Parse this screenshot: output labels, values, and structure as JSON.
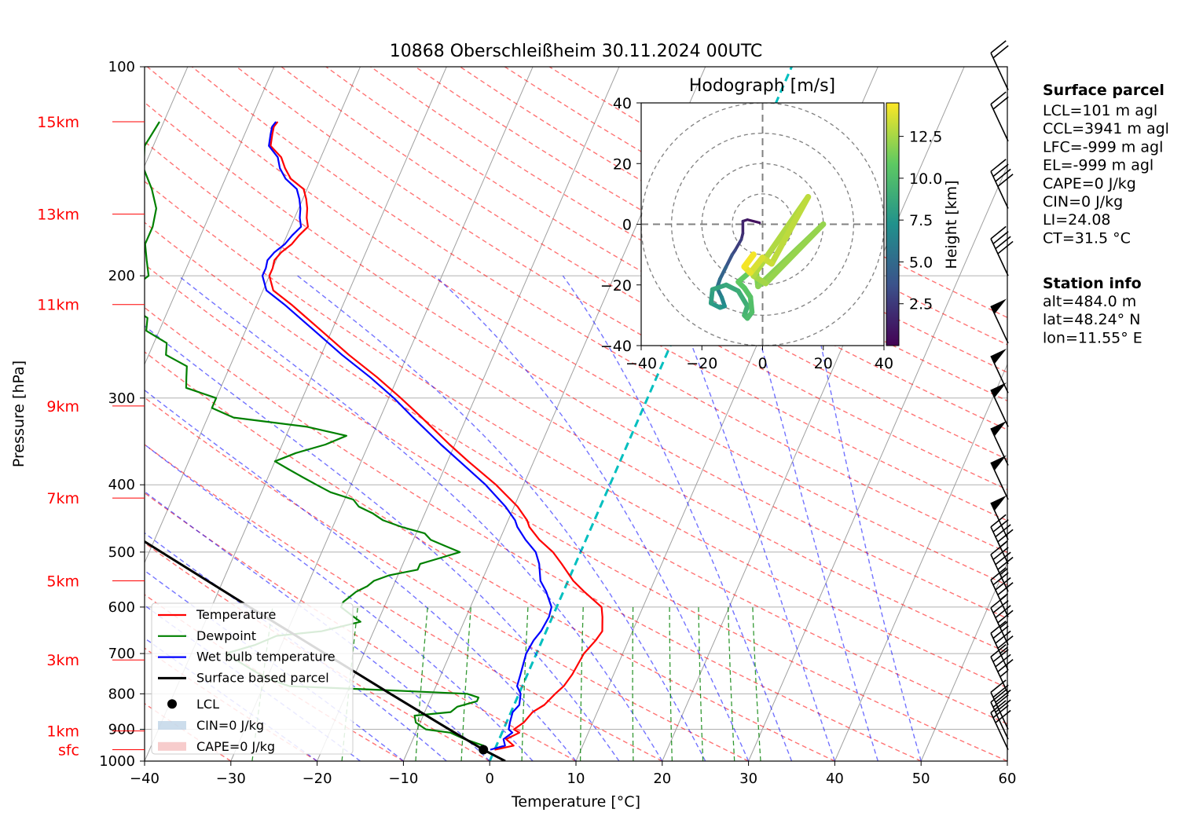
{
  "title": "10868 Oberschleißheim 30.11.2024 00UTC",
  "colors": {
    "temperature": "#ff0000",
    "dewpoint": "#008000",
    "wetbulb": "#0000ff",
    "parcel": "#000000",
    "dry_adiabat": "#ff0000",
    "moist_adiabat": "#0000ff",
    "mixing_ratio": "#008000",
    "isotherm_zero": "#00bfbf",
    "height_label": "#ff0000",
    "isotherm": "#a0a0a0"
  },
  "chart_data": [
    {
      "type": "line",
      "name": "skew-t",
      "xlabel": "Temperature [°C]",
      "ylabel": "Pressure [hPa]",
      "xlim": [
        -40,
        60
      ],
      "ylim": [
        1000,
        100
      ],
      "y_scale": "log",
      "skew": 35,
      "grid": true,
      "x_ticks": [
        -40,
        -30,
        -20,
        -10,
        0,
        10,
        20,
        30,
        40,
        50,
        60
      ],
      "x_tick_labels": [
        "−40",
        "−30",
        "−20",
        "−10",
        "0",
        "10",
        "20",
        "30",
        "40",
        "50",
        "60"
      ],
      "y_ticks": [
        1000,
        900,
        800,
        700,
        600,
        500,
        400,
        300,
        200,
        100
      ],
      "y_tick_labels": [
        "1000",
        "900",
        "800",
        "700",
        "600",
        "500",
        "400",
        "300",
        "200",
        "100"
      ],
      "height_labels": [
        {
          "label": "sfc",
          "p": 963
        },
        {
          "label": "1km",
          "p": 905
        },
        {
          "label": "3km",
          "p": 715
        },
        {
          "label": "5km",
          "p": 550
        },
        {
          "label": "7km",
          "p": 418
        },
        {
          "label": "9km",
          "p": 308
        },
        {
          "label": "11km",
          "p": 220
        },
        {
          "label": "13km",
          "p": 163
        },
        {
          "label": "15km",
          "p": 120
        }
      ],
      "legend": {
        "placement": "lower-left",
        "entries": [
          {
            "label": "Temperature",
            "kind": "line",
            "key": "temperature"
          },
          {
            "label": "Dewpoint",
            "kind": "line",
            "key": "dewpoint"
          },
          {
            "label": "Wet bulb temperature",
            "kind": "line",
            "key": "wetbulb"
          },
          {
            "label": "Surface based parcel",
            "kind": "line",
            "key": "parcel"
          },
          {
            "label": "LCL",
            "kind": "dot",
            "key": "parcel"
          },
          {
            "label": "CIN=0 J/kg",
            "kind": "patch",
            "key": "cin"
          },
          {
            "label": "CAPE=0 J/kg",
            "kind": "patch",
            "key": "cape"
          }
        ]
      },
      "lcl": {
        "p": 963,
        "t": -1.3
      },
      "series": [
        {
          "key": "temperature",
          "p": [
            963,
            950,
            930,
            910,
            900,
            880,
            850,
            830,
            800,
            780,
            750,
            700,
            670,
            650,
            620,
            600,
            570,
            550,
            520,
            500,
            480,
            460,
            450,
            430,
            400,
            370,
            350,
            320,
            300,
            280,
            260,
            240,
            220,
            210,
            200,
            195,
            190,
            185,
            180,
            175,
            170,
            165,
            160,
            155,
            150,
            145,
            140,
            135,
            130,
            125,
            122,
            120
          ],
          "t": [
            0.0,
            2.0,
            0.8,
            2.0,
            1.2,
            2.0,
            2.5,
            3.5,
            4.2,
            4.8,
            5.2,
            5.5,
            6.2,
            6.5,
            5.8,
            5.2,
            2.4,
            0.6,
            -1.6,
            -3.2,
            -5.4,
            -7.2,
            -7.8,
            -9.6,
            -13.2,
            -17.6,
            -20.6,
            -25.2,
            -28.6,
            -32.4,
            -36.8,
            -41.2,
            -46.0,
            -48.8,
            -50.0,
            -50.0,
            -50.2,
            -49.8,
            -49.0,
            -48.6,
            -48.0,
            -48.6,
            -49.0,
            -49.6,
            -50.4,
            -52.4,
            -53.6,
            -54.6,
            -56.4,
            -56.8,
            -57.0,
            -56.8
          ]
        },
        {
          "key": "wetbulb",
          "p": [
            963,
            950,
            930,
            910,
            900,
            880,
            850,
            830,
            800,
            780,
            750,
            700,
            670,
            650,
            620,
            600,
            570,
            550,
            520,
            500,
            480,
            460,
            450,
            430,
            400,
            370,
            350,
            320,
            300,
            280,
            260,
            240,
            220,
            210,
            200,
            195,
            190,
            185,
            180,
            175,
            170,
            165,
            160,
            155,
            150,
            145,
            140,
            135,
            130,
            125,
            122,
            120
          ],
          "t": [
            -0.5,
            1.0,
            0.5,
            1.2,
            0.6,
            0.4,
            0.2,
            0.6,
            0.2,
            -0.6,
            -0.8,
            -1.2,
            -1.0,
            -0.6,
            -0.4,
            -0.6,
            -2.0,
            -3.2,
            -4.2,
            -5.2,
            -7.0,
            -8.6,
            -9.2,
            -11.0,
            -14.4,
            -18.6,
            -21.6,
            -26.2,
            -29.4,
            -33.2,
            -37.6,
            -42.0,
            -46.8,
            -49.6,
            -50.8,
            -50.8,
            -51.0,
            -50.6,
            -49.8,
            -49.4,
            -48.8,
            -49.4,
            -49.8,
            -50.4,
            -51.2,
            -53.0,
            -54.2,
            -55.0,
            -56.6,
            -57.0,
            -57.2,
            -57.0
          ]
        },
        {
          "key": "dewpoint",
          "p": [
            963,
            950,
            930,
            910,
            900,
            880,
            860,
            850,
            835,
            820,
            810,
            800,
            790,
            780,
            760,
            740,
            720,
            700,
            680,
            660,
            650,
            640,
            630,
            620,
            610,
            600,
            590,
            580,
            570,
            560,
            550,
            540,
            530,
            520,
            510,
            500,
            490,
            480,
            470,
            460,
            450,
            440,
            430,
            420,
            410,
            400,
            390,
            380,
            370,
            360,
            350,
            340,
            330,
            320,
            310,
            300,
            290,
            280,
            270,
            260,
            250,
            240,
            230,
            220,
            210,
            200,
            190,
            180,
            170,
            160,
            150,
            140,
            130,
            120
          ],
          "t": [
            -1.0,
            -1.5,
            -4.0,
            -6.0,
            -9.0,
            -10.5,
            -11.0,
            -7.0,
            -6.5,
            -4.5,
            -4.5,
            -6.0,
            -16.0,
            -27.0,
            -30.0,
            -32.0,
            -34.0,
            -36.0,
            -33.0,
            -31.0,
            -26.0,
            -24.0,
            -22.0,
            -23.0,
            -24.0,
            -25.0,
            -25.0,
            -24.5,
            -24.0,
            -23.0,
            -22.5,
            -21.0,
            -18.0,
            -18.0,
            -16.0,
            -14.0,
            -16.0,
            -18.0,
            -19.0,
            -22.0,
            -24.5,
            -26.0,
            -28.0,
            -29.0,
            -32.0,
            -34.0,
            -36.0,
            -38.0,
            -40.0,
            -38.0,
            -35.0,
            -33.0,
            -38.0,
            -47.0,
            -50.0,
            -50.0,
            -54.0,
            -54.5,
            -55.0,
            -58.0,
            -58.5,
            -61.5,
            -62.0,
            -65.0,
            -65.5,
            -64.0,
            -65.0,
            -66.0,
            -66.0,
            -66.5,
            -68.0,
            -70.0,
            -71.0,
            -70.5
          ]
        },
        {
          "key": "parcel",
          "p": [
            1000,
            963,
            900,
            800,
            700,
            600,
            500,
            400,
            300,
            250
          ],
          "t": [
            1.8,
            -1.3,
            -6.3,
            -14.9,
            -24.5,
            -35.6,
            -48.6,
            -64.4,
            -84.8,
            -98.1
          ]
        }
      ],
      "wind_barbs": [
        {
          "p": 963,
          "kt": 30
        },
        {
          "p": 930,
          "kt": 30
        },
        {
          "p": 900,
          "kt": 30
        },
        {
          "p": 800,
          "kt": 45
        },
        {
          "p": 740,
          "kt": 45
        },
        {
          "p": 680,
          "kt": 45
        },
        {
          "p": 620,
          "kt": 45
        },
        {
          "p": 570,
          "kt": 45
        },
        {
          "p": 520,
          "kt": 45
        },
        {
          "p": 480,
          "kt": 50
        },
        {
          "p": 420,
          "kt": 50
        },
        {
          "p": 375,
          "kt": 50
        },
        {
          "p": 330,
          "kt": 50
        },
        {
          "p": 295,
          "kt": 50
        },
        {
          "p": 250,
          "kt": 50
        },
        {
          "p": 200,
          "kt": 40
        },
        {
          "p": 160,
          "kt": 40
        },
        {
          "p": 128,
          "kt": 20
        },
        {
          "p": 108,
          "kt": 20
        }
      ]
    },
    {
      "type": "line",
      "name": "hodograph",
      "title": "Hodograph [m/s]",
      "xlim": [
        -40,
        40
      ],
      "ylim": [
        -40,
        40
      ],
      "x_ticks": [
        -40,
        -20,
        0,
        20,
        40
      ],
      "x_tick_labels": [
        "−40",
        "−20",
        "0",
        "20",
        "40"
      ],
      "y_ticks": [
        -40,
        -20,
        0,
        20,
        40
      ],
      "y_tick_labels": [
        "−40",
        "−20",
        "0",
        "20",
        "40"
      ],
      "rings": [
        10,
        20,
        30,
        40
      ],
      "colorbar": {
        "label": "Height [km]",
        "range": [
          0,
          14.5
        ],
        "ticks": [
          2.5,
          5.0,
          7.5,
          10.0,
          12.5
        ],
        "tick_labels": [
          "2.5",
          "5.0",
          "7.5",
          "10.0",
          "12.5"
        ],
        "colormap": "viridis"
      },
      "points": [
        {
          "u": -1.0,
          "v": 0.5,
          "h": 0.4
        },
        {
          "u": -5.0,
          "v": 1.5,
          "h": 0.9
        },
        {
          "u": -6.5,
          "v": 1.0,
          "h": 1.3
        },
        {
          "u": -6.5,
          "v": -3.0,
          "h": 1.8
        },
        {
          "u": -7.0,
          "v": -5.0,
          "h": 2.3
        },
        {
          "u": -9.0,
          "v": -8.5,
          "h": 3.0
        },
        {
          "u": -10.0,
          "v": -10.0,
          "h": 3.4
        },
        {
          "u": -12.0,
          "v": -14.0,
          "h": 4.2
        },
        {
          "u": -14.0,
          "v": -18.0,
          "h": 5.0
        },
        {
          "u": -15.0,
          "v": -21.0,
          "h": 5.6
        },
        {
          "u": -13.5,
          "v": -24.0,
          "h": 6.3
        },
        {
          "u": -12.5,
          "v": -27.0,
          "h": 7.0
        },
        {
          "u": -14.0,
          "v": -27.5,
          "h": 7.5
        },
        {
          "u": -17.0,
          "v": -26.0,
          "h": 7.9
        },
        {
          "u": -16.5,
          "v": -21.5,
          "h": 8.3
        },
        {
          "u": -12.0,
          "v": -20.0,
          "h": 8.6
        },
        {
          "u": -8.0,
          "v": -22.0,
          "h": 8.9
        },
        {
          "u": -5.0,
          "v": -27.0,
          "h": 9.2
        },
        {
          "u": -6.0,
          "v": -30.0,
          "h": 9.5
        },
        {
          "u": -5.0,
          "v": -31.0,
          "h": 9.8
        },
        {
          "u": -3.5,
          "v": -29.0,
          "h": 10.1
        },
        {
          "u": -4.0,
          "v": -24.0,
          "h": 10.4
        },
        {
          "u": -6.0,
          "v": -21.0,
          "h": 10.6
        },
        {
          "u": -8.0,
          "v": -19.0,
          "h": 10.8
        },
        {
          "u": -4.5,
          "v": -16.0,
          "h": 11.1
        },
        {
          "u": -2.0,
          "v": -16.5,
          "h": 11.4
        },
        {
          "u": -1.5,
          "v": -20.5,
          "h": 11.7
        },
        {
          "u": 20.0,
          "v": 0.0,
          "h": 12.0
        },
        {
          "u": 1.0,
          "v": -19.5,
          "h": 12.3
        },
        {
          "u": -3.0,
          "v": -17.0,
          "h": 12.6
        },
        {
          "u": 15.0,
          "v": 9.0,
          "h": 12.9
        },
        {
          "u": 3.0,
          "v": -13.0,
          "h": 13.2
        },
        {
          "u": 0.0,
          "v": -11.0,
          "h": 13.5
        },
        {
          "u": -4.0,
          "v": -16.0,
          "h": 13.8
        },
        {
          "u": -6.0,
          "v": -14.0,
          "h": 14.1
        },
        {
          "u": -3.0,
          "v": -10.0,
          "h": 14.5
        }
      ]
    }
  ],
  "info": {
    "surface_parcel_title": "Surface parcel",
    "surface_parcel": [
      "LCL=101 m agl",
      "CCL=3941 m agl",
      "LFC=-999 m agl",
      "EL=-999 m agl",
      "CAPE=0 J/kg",
      "CIN=0 J/kg",
      "LI=24.08",
      "CT=31.5 °C"
    ],
    "station_title": "Station info",
    "station": [
      "alt=484.0 m",
      "lat=48.24° N",
      "lon=11.55° E"
    ]
  }
}
